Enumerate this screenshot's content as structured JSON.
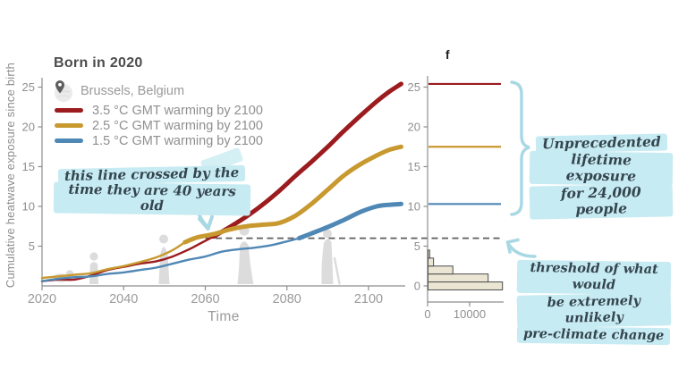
{
  "figure": {
    "panel_label": "f"
  },
  "header": {
    "title": "Born in 2020",
    "location": "Brussels, Belgium"
  },
  "annotations": {
    "crossing": {
      "line1": "this line crossed by the",
      "line2": "time they are 40 years old"
    },
    "unprecedented": {
      "line1": "Unprecedented",
      "line2": "lifetime exposure",
      "line3": "for 24,000 people"
    },
    "threshold": {
      "line1": "threshold of what would",
      "line2": "be extremely unlikely",
      "line3": "pre-climate change"
    }
  },
  "chart_data": {
    "type": "line",
    "title": "Born in 2020",
    "location": "Brussels, Belgium",
    "xlabel": "Time",
    "ylabel": "Cumulative heatwave exposure since birth",
    "x_range": [
      2020,
      2108
    ],
    "x_ticks": [
      2020,
      2040,
      2060,
      2080,
      2100
    ],
    "y_ticks_main": [
      5,
      10,
      15,
      20,
      25
    ],
    "y_ticks_right": [
      0,
      5,
      10,
      15,
      20,
      25
    ],
    "ylim": [
      0,
      26.5
    ],
    "threshold_value": 6,
    "threshold_start_year": 2060,
    "grid": false,
    "legend_position": "top-left",
    "series": [
      {
        "name": "3.5 °C GMT warming by 2100",
        "color": "#9b1b1e",
        "thick_from": 2061,
        "points": [
          [
            2020,
            0.6
          ],
          [
            2024,
            0.8
          ],
          [
            2028,
            0.8
          ],
          [
            2032,
            1.3
          ],
          [
            2036,
            2.0
          ],
          [
            2040,
            2.4
          ],
          [
            2044,
            2.8
          ],
          [
            2048,
            3.1
          ],
          [
            2052,
            3.7
          ],
          [
            2056,
            4.6
          ],
          [
            2059,
            5.4
          ],
          [
            2062,
            6.2
          ],
          [
            2066,
            7.4
          ],
          [
            2070,
            8.7
          ],
          [
            2074,
            10.2
          ],
          [
            2078,
            11.9
          ],
          [
            2082,
            13.8
          ],
          [
            2086,
            15.6
          ],
          [
            2090,
            17.5
          ],
          [
            2094,
            19.5
          ],
          [
            2098,
            21.4
          ],
          [
            2102,
            23.2
          ],
          [
            2105,
            24.4
          ],
          [
            2108,
            25.4
          ]
        ]
      },
      {
        "name": "2.5 °C GMT warming by 2100",
        "color": "#c8992f",
        "thick_from": 2055,
        "points": [
          [
            2020,
            1.0
          ],
          [
            2024,
            1.2
          ],
          [
            2028,
            1.4
          ],
          [
            2032,
            1.6
          ],
          [
            2036,
            2.1
          ],
          [
            2040,
            2.5
          ],
          [
            2044,
            3.0
          ],
          [
            2048,
            3.6
          ],
          [
            2052,
            4.5
          ],
          [
            2055,
            5.5
          ],
          [
            2058,
            6.1
          ],
          [
            2062,
            6.5
          ],
          [
            2066,
            7.1
          ],
          [
            2070,
            7.5
          ],
          [
            2074,
            7.7
          ],
          [
            2078,
            7.9
          ],
          [
            2082,
            8.8
          ],
          [
            2086,
            10.3
          ],
          [
            2090,
            12.1
          ],
          [
            2094,
            13.9
          ],
          [
            2098,
            15.3
          ],
          [
            2102,
            16.4
          ],
          [
            2105,
            17.1
          ],
          [
            2108,
            17.5
          ]
        ]
      },
      {
        "name": "1.5 °C GMT warming by 2100",
        "color": "#4f87b5",
        "thick_from": 2083,
        "points": [
          [
            2020,
            0.6
          ],
          [
            2024,
            0.9
          ],
          [
            2028,
            1.1
          ],
          [
            2032,
            1.2
          ],
          [
            2036,
            1.5
          ],
          [
            2040,
            1.7
          ],
          [
            2044,
            2.0
          ],
          [
            2048,
            2.3
          ],
          [
            2052,
            2.8
          ],
          [
            2056,
            3.3
          ],
          [
            2060,
            3.7
          ],
          [
            2064,
            4.3
          ],
          [
            2068,
            4.6
          ],
          [
            2072,
            4.8
          ],
          [
            2076,
            5.1
          ],
          [
            2080,
            5.6
          ],
          [
            2083,
            6.0
          ],
          [
            2086,
            6.6
          ],
          [
            2090,
            7.4
          ],
          [
            2094,
            8.3
          ],
          [
            2098,
            9.3
          ],
          [
            2102,
            10.0
          ],
          [
            2105,
            10.2
          ],
          [
            2108,
            10.3
          ]
        ]
      }
    ],
    "right_panel": {
      "label": "f",
      "final_exposure": {
        "3.5C": 25.4,
        "2.5C": 17.5,
        "1.5C": 10.3
      },
      "histogram": {
        "orientation": "horizontal",
        "x_ticks": [
          0,
          10000
        ],
        "bins": [
          0,
          1,
          2,
          3,
          4
        ],
        "values": [
          17700,
          14300,
          5900,
          1300,
          400
        ]
      }
    },
    "colors": {
      "highlight": "#c7ebf2",
      "annotation_text": "#35454f",
      "decoration_blue": "#a9d8e5",
      "histogram_fill": "#ebe6d4",
      "histogram_stroke": "#4b4b4b",
      "threshold_dash": "#5c5c5c",
      "axis": "#8e8e8e",
      "silhouette": "#dcdcdc"
    }
  }
}
